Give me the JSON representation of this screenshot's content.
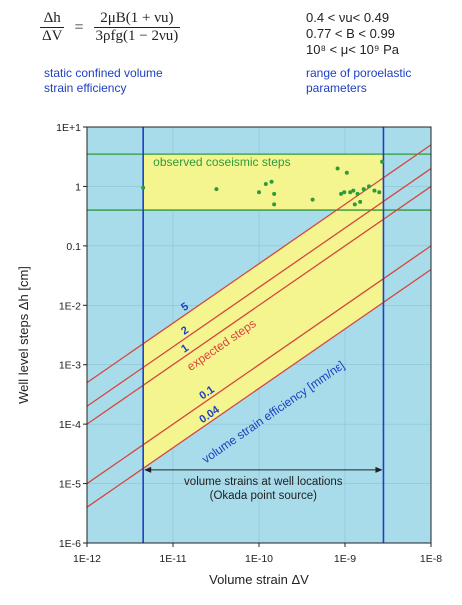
{
  "formula": {
    "lhs_num": "Δh",
    "lhs_den": "ΔV",
    "rhs_num": "2μB(1 + νu)",
    "rhs_den": "3ρfg(1 − 2νu)",
    "caption_line1": "static confined volume",
    "caption_line2": "strain efficiency"
  },
  "params": {
    "line1": "0.4 < νu< 0.49",
    "line2": "0.77 < B < 0.99",
    "line3": "10⁸ < μ< 10⁹ Pa",
    "caption_line1": "range of poroelastic",
    "caption_line2": "parameters"
  },
  "colors": {
    "plot_bg": "#a9dceb",
    "band": "#f5f590",
    "red": "#d4473f",
    "blue": "#1f3fbf",
    "green": "#2e9a3a"
  },
  "chart_data": {
    "type": "scatter",
    "xlabel": "Volume strain ΔV",
    "ylabel": "Well level steps Δh [cm]",
    "xscale": "log",
    "yscale": "log",
    "xlim": [
      1e-12,
      1e-08
    ],
    "ylim": [
      1e-06,
      10
    ],
    "x_ticks": [
      "1E-12",
      "1E-11",
      "1E-10",
      "1E-9",
      "1E-8"
    ],
    "y_ticks": [
      "1E-6",
      "1E-5",
      "1E-4",
      "1E-3",
      "1E-2",
      "0.1",
      "1",
      "1E+1"
    ],
    "volume_strain_range": [
      4.5e-12,
      2.8e-09
    ],
    "coseismic_step_range": [
      0.4,
      3.5
    ],
    "efficiency_lines": [
      {
        "label": "5",
        "efficiency": 5
      },
      {
        "label": "2",
        "efficiency": 2
      },
      {
        "label": "1",
        "efficiency": 1
      },
      {
        "label": "0.1",
        "efficiency": 0.1
      },
      {
        "label": "0.04",
        "efficiency": 0.04
      }
    ],
    "efficiency_label": "volume strain efficiency [mm/nε]",
    "band_label": "expected steps",
    "observed_label": "observed coseismic steps",
    "observed_points": [
      {
        "x": 4.5e-12,
        "y": 0.95
      },
      {
        "x": 3.2e-11,
        "y": 0.9
      },
      {
        "x": 1e-10,
        "y": 0.8
      },
      {
        "x": 1.2e-10,
        "y": 1.1
      },
      {
        "x": 1.4e-10,
        "y": 1.2
      },
      {
        "x": 1.5e-10,
        "y": 0.75
      },
      {
        "x": 1.5e-10,
        "y": 0.5
      },
      {
        "x": 4.2e-10,
        "y": 0.6
      },
      {
        "x": 8.2e-10,
        "y": 2.0
      },
      {
        "x": 9e-10,
        "y": 0.75
      },
      {
        "x": 9.8e-10,
        "y": 0.8
      },
      {
        "x": 1.05e-09,
        "y": 1.7
      },
      {
        "x": 1.15e-09,
        "y": 0.8
      },
      {
        "x": 1.25e-09,
        "y": 0.85
      },
      {
        "x": 1.3e-09,
        "y": 0.5
      },
      {
        "x": 1.4e-09,
        "y": 0.75
      },
      {
        "x": 1.5e-09,
        "y": 0.55
      },
      {
        "x": 1.65e-09,
        "y": 0.9
      },
      {
        "x": 1.9e-09,
        "y": 1.0
      },
      {
        "x": 2.2e-09,
        "y": 0.85
      },
      {
        "x": 2.5e-09,
        "y": 0.8
      },
      {
        "x": 2.7e-09,
        "y": 2.6
      }
    ],
    "strain_arrow_label_line1": "volume strains at well locations",
    "strain_arrow_label_line2": "(Okada point source)"
  }
}
